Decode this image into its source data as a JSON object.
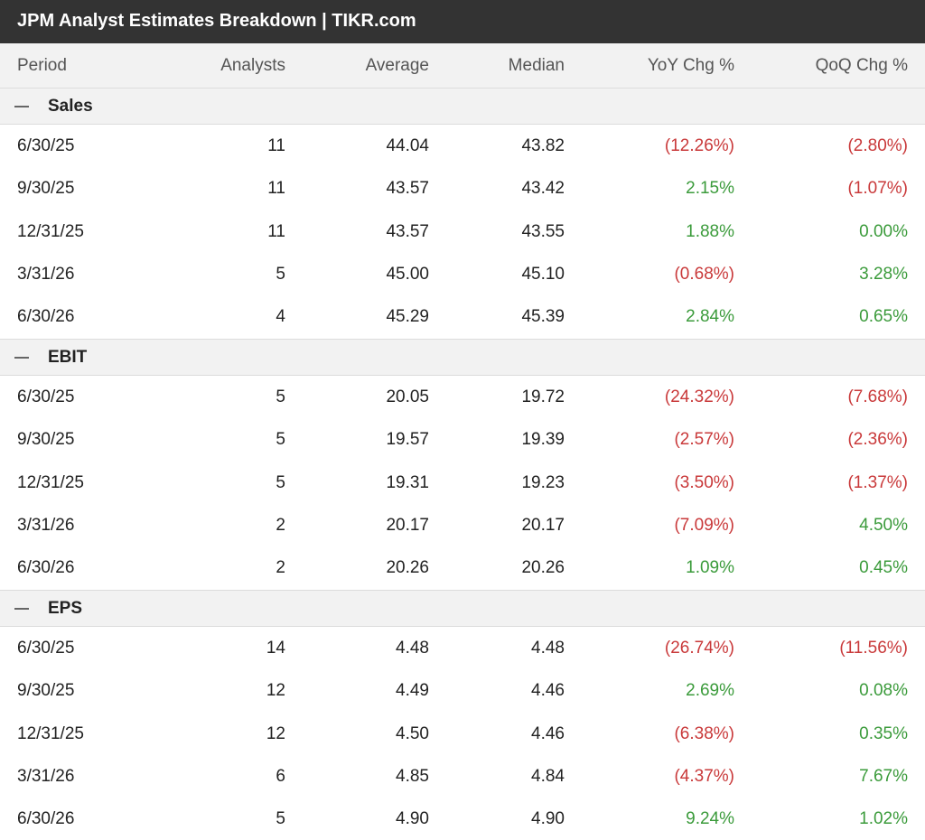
{
  "title": "JPM Analyst Estimates Breakdown | TIKR.com",
  "columns": {
    "period": "Period",
    "analysts": "Analysts",
    "average": "Average",
    "median": "Median",
    "yoy": "YoY Chg %",
    "qoq": "QoQ Chg %"
  },
  "colors": {
    "negative": "#c9393a",
    "positive": "#3b9b3b"
  },
  "toggle_icon": "collapse-minus-icon",
  "sections": [
    {
      "name": "Sales",
      "rows": [
        {
          "period": "6/30/25",
          "analysts": "11",
          "average": "44.04",
          "median": "43.82",
          "yoy": "(12.26%)",
          "qoq": "(2.80%)"
        },
        {
          "period": "9/30/25",
          "analysts": "11",
          "average": "43.57",
          "median": "43.42",
          "yoy": "2.15%",
          "qoq": "(1.07%)"
        },
        {
          "period": "12/31/25",
          "analysts": "11",
          "average": "43.57",
          "median": "43.55",
          "yoy": "1.88%",
          "qoq": "0.00%"
        },
        {
          "period": "3/31/26",
          "analysts": "5",
          "average": "45.00",
          "median": "45.10",
          "yoy": "(0.68%)",
          "qoq": "3.28%"
        },
        {
          "period": "6/30/26",
          "analysts": "4",
          "average": "45.29",
          "median": "45.39",
          "yoy": "2.84%",
          "qoq": "0.65%"
        }
      ]
    },
    {
      "name": "EBIT",
      "rows": [
        {
          "period": "6/30/25",
          "analysts": "5",
          "average": "20.05",
          "median": "19.72",
          "yoy": "(24.32%)",
          "qoq": "(7.68%)"
        },
        {
          "period": "9/30/25",
          "analysts": "5",
          "average": "19.57",
          "median": "19.39",
          "yoy": "(2.57%)",
          "qoq": "(2.36%)"
        },
        {
          "period": "12/31/25",
          "analysts": "5",
          "average": "19.31",
          "median": "19.23",
          "yoy": "(3.50%)",
          "qoq": "(1.37%)"
        },
        {
          "period": "3/31/26",
          "analysts": "2",
          "average": "20.17",
          "median": "20.17",
          "yoy": "(7.09%)",
          "qoq": "4.50%"
        },
        {
          "period": "6/30/26",
          "analysts": "2",
          "average": "20.26",
          "median": "20.26",
          "yoy": "1.09%",
          "qoq": "0.45%"
        }
      ]
    },
    {
      "name": "EPS",
      "rows": [
        {
          "period": "6/30/25",
          "analysts": "14",
          "average": "4.48",
          "median": "4.48",
          "yoy": "(26.74%)",
          "qoq": "(11.56%)"
        },
        {
          "period": "9/30/25",
          "analysts": "12",
          "average": "4.49",
          "median": "4.46",
          "yoy": "2.69%",
          "qoq": "0.08%"
        },
        {
          "period": "12/31/25",
          "analysts": "12",
          "average": "4.50",
          "median": "4.46",
          "yoy": "(6.38%)",
          "qoq": "0.35%"
        },
        {
          "period": "3/31/26",
          "analysts": "6",
          "average": "4.85",
          "median": "4.84",
          "yoy": "(4.37%)",
          "qoq": "7.67%"
        },
        {
          "period": "6/30/26",
          "analysts": "5",
          "average": "4.90",
          "median": "4.90",
          "yoy": "9.24%",
          "qoq": "1.02%"
        }
      ]
    }
  ]
}
